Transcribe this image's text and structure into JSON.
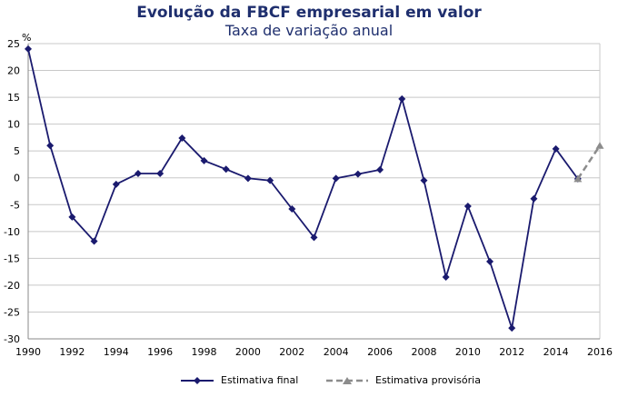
{
  "chart_data": {
    "type": "line",
    "title": "Evolução da FBCF empresarial em valor",
    "subtitle": "Taxa de variação anual",
    "ylabel": "%",
    "xlim": [
      1990,
      2016
    ],
    "ylim": [
      -30,
      25
    ],
    "x_ticks": [
      1990,
      1992,
      1994,
      1996,
      1998,
      2000,
      2002,
      2004,
      2006,
      2008,
      2010,
      2012,
      2014,
      2016
    ],
    "y_ticks": [
      25,
      20,
      15,
      10,
      5,
      0,
      -5,
      -10,
      -15,
      -20,
      -25,
      -30
    ],
    "grid": true,
    "legend_position": "bottom",
    "series": [
      {
        "name": "Estimativa final",
        "color": "#1a1a6e",
        "style": "solid",
        "marker": "diamond",
        "x": [
          1990,
          1991,
          1992,
          1993,
          1994,
          1995,
          1996,
          1997,
          1998,
          1999,
          2000,
          2001,
          2002,
          2003,
          2004,
          2005,
          2006,
          2007,
          2008,
          2009,
          2010,
          2011,
          2012,
          2013,
          2014,
          2015
        ],
        "y": [
          24,
          6,
          -7.3,
          -11.8,
          -1.2,
          0.8,
          0.8,
          7.4,
          3.2,
          1.6,
          -0.1,
          -0.5,
          -5.8,
          -11.1,
          -0.1,
          0.7,
          1.5,
          14.7,
          -0.5,
          -18.5,
          -5.3,
          -15.6,
          -28,
          -3.9,
          5.4,
          -0.2
        ]
      },
      {
        "name": "Estimativa provisória",
        "color": "#8c8c8c",
        "style": "dashed",
        "marker": "triangle",
        "x": [
          2015,
          2016
        ],
        "y": [
          -0.2,
          6
        ]
      }
    ]
  }
}
